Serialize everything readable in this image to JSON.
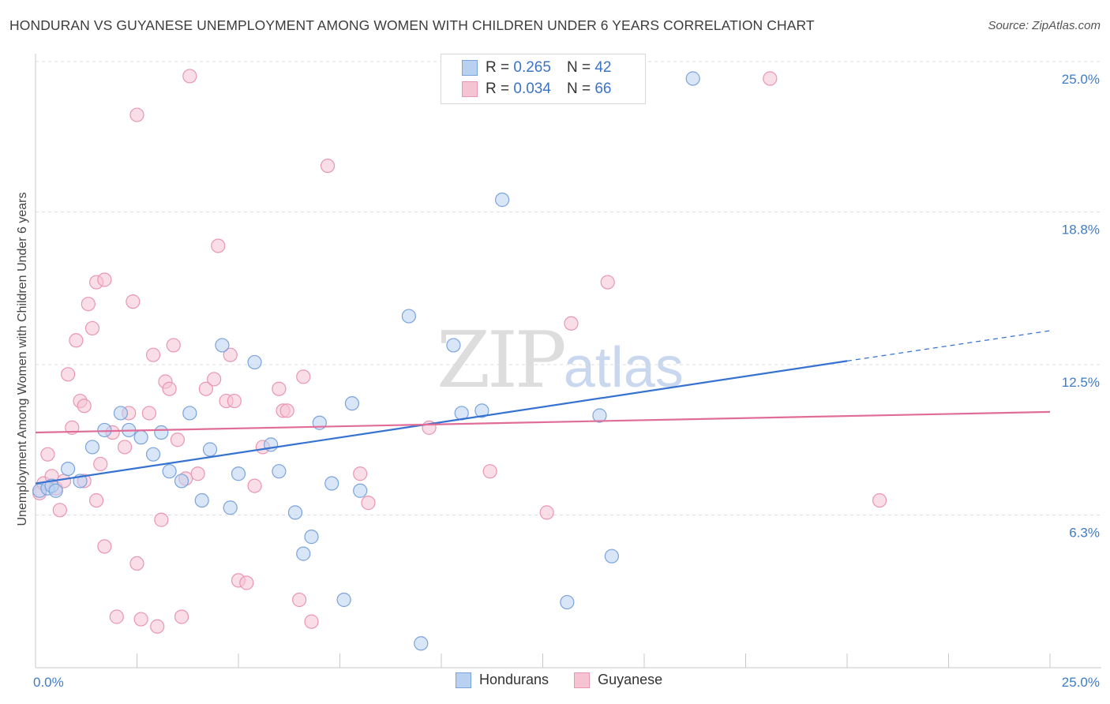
{
  "title": "HONDURAN VS GUYANESE UNEMPLOYMENT AMONG WOMEN WITH CHILDREN UNDER 6 YEARS CORRELATION CHART",
  "source": "Source: ZipAtlas.com",
  "watermark": {
    "zip": "ZIP",
    "atlas": "atlas"
  },
  "legend_top": {
    "rows": [
      {
        "r_label": "R =",
        "r_value": "0.265",
        "n_label": "N =",
        "n_value": "42"
      },
      {
        "r_label": "R =",
        "r_value": "0.034",
        "n_label": "N =",
        "n_value": "66"
      }
    ]
  },
  "legend_bottom": {
    "hondurans": "Hondurans",
    "guyanese": "Guyanese"
  },
  "colors": {
    "hondurans_fill": "#b8d1f1",
    "hondurans_stroke": "#7ba3dc",
    "hondurans_line": "#3572d1",
    "guyanese_fill": "#f6c3d3",
    "guyanese_stroke": "#e996b2",
    "guyanese_line": "#e06d97",
    "tick_text": "#3f7cc9",
    "grid": "#dcdcdc"
  },
  "chart_data": {
    "type": "scatter",
    "title": "HONDURAN VS GUYANESE UNEMPLOYMENT AMONG WOMEN WITH CHILDREN UNDER 6 YEARS CORRELATION CHART",
    "xlabel": "",
    "ylabel": "Unemployment Among Women with Children Under 6 years",
    "xlim": [
      0,
      25
    ],
    "ylim": [
      0,
      25
    ],
    "x_ticks": [
      "0.0%",
      "25.0%"
    ],
    "y_ticks": [
      {
        "value": 6.3,
        "label": "6.3%"
      },
      {
        "value": 12.5,
        "label": "12.5%"
      },
      {
        "value": 18.8,
        "label": "18.8%"
      },
      {
        "value": 25.0,
        "label": "25.0%"
      }
    ],
    "grid": true,
    "legend": "bottom-center",
    "series": [
      {
        "name": "Hondurans",
        "r": 0.265,
        "n": 42,
        "trend": {
          "x": [
            0.0,
            20.0
          ],
          "y": [
            7.6,
            12.65
          ],
          "dashed_to": [
            25.0,
            13.9
          ]
        },
        "points": [
          [
            0.1,
            7.3
          ],
          [
            0.3,
            7.4
          ],
          [
            0.4,
            7.5
          ],
          [
            0.5,
            7.3
          ],
          [
            0.8,
            8.2
          ],
          [
            1.1,
            7.7
          ],
          [
            1.4,
            9.1
          ],
          [
            1.7,
            9.8
          ],
          [
            2.1,
            10.5
          ],
          [
            2.3,
            9.8
          ],
          [
            2.6,
            9.5
          ],
          [
            2.9,
            8.8
          ],
          [
            3.1,
            9.7
          ],
          [
            3.3,
            8.1
          ],
          [
            3.6,
            7.7
          ],
          [
            3.8,
            10.5
          ],
          [
            4.1,
            6.9
          ],
          [
            4.3,
            9.0
          ],
          [
            4.6,
            13.3
          ],
          [
            4.8,
            6.6
          ],
          [
            5.0,
            8.0
          ],
          [
            5.4,
            12.6
          ],
          [
            5.8,
            9.2
          ],
          [
            6.0,
            8.1
          ],
          [
            6.4,
            6.4
          ],
          [
            6.6,
            4.7
          ],
          [
            6.8,
            5.4
          ],
          [
            7.0,
            10.1
          ],
          [
            7.3,
            7.6
          ],
          [
            7.6,
            2.8
          ],
          [
            7.8,
            10.9
          ],
          [
            8.0,
            7.3
          ],
          [
            9.2,
            14.5
          ],
          [
            9.5,
            1.0
          ],
          [
            10.3,
            13.3
          ],
          [
            10.5,
            10.5
          ],
          [
            11.0,
            10.6
          ],
          [
            11.5,
            19.3
          ],
          [
            13.1,
            2.7
          ],
          [
            13.9,
            10.4
          ],
          [
            14.2,
            4.6
          ],
          [
            16.2,
            24.3
          ]
        ]
      },
      {
        "name": "Guyanese",
        "r": 0.034,
        "n": 66,
        "trend": {
          "x": [
            0.0,
            25.0
          ],
          "y": [
            9.7,
            10.55
          ]
        },
        "points": [
          [
            0.1,
            7.2
          ],
          [
            0.2,
            7.6
          ],
          [
            0.3,
            8.8
          ],
          [
            0.4,
            7.9
          ],
          [
            0.5,
            7.4
          ],
          [
            0.6,
            6.5
          ],
          [
            0.7,
            7.7
          ],
          [
            0.8,
            12.1
          ],
          [
            0.9,
            9.9
          ],
          [
            1.0,
            13.5
          ],
          [
            1.1,
            11.0
          ],
          [
            1.2,
            10.8
          ],
          [
            1.2,
            7.7
          ],
          [
            1.3,
            15.0
          ],
          [
            1.4,
            14.0
          ],
          [
            1.5,
            15.9
          ],
          [
            1.5,
            6.9
          ],
          [
            1.6,
            8.4
          ],
          [
            1.7,
            5.0
          ],
          [
            1.7,
            16.0
          ],
          [
            1.9,
            9.7
          ],
          [
            2.0,
            2.1
          ],
          [
            2.2,
            9.1
          ],
          [
            2.3,
            10.5
          ],
          [
            2.4,
            15.1
          ],
          [
            2.5,
            22.8
          ],
          [
            2.5,
            4.3
          ],
          [
            2.6,
            2.0
          ],
          [
            2.8,
            10.5
          ],
          [
            2.9,
            12.9
          ],
          [
            3.0,
            1.7
          ],
          [
            3.1,
            6.1
          ],
          [
            3.2,
            11.8
          ],
          [
            3.3,
            11.5
          ],
          [
            3.4,
            13.3
          ],
          [
            3.5,
            9.4
          ],
          [
            3.6,
            2.1
          ],
          [
            3.7,
            7.8
          ],
          [
            3.8,
            24.4
          ],
          [
            4.0,
            8.0
          ],
          [
            4.2,
            11.5
          ],
          [
            4.4,
            11.9
          ],
          [
            4.5,
            17.4
          ],
          [
            4.7,
            11.0
          ],
          [
            4.8,
            12.9
          ],
          [
            4.9,
            11.0
          ],
          [
            5.0,
            3.6
          ],
          [
            5.2,
            3.5
          ],
          [
            5.4,
            7.5
          ],
          [
            5.6,
            9.1
          ],
          [
            6.0,
            11.5
          ],
          [
            6.1,
            10.6
          ],
          [
            6.2,
            10.6
          ],
          [
            6.5,
            2.8
          ],
          [
            6.6,
            12.0
          ],
          [
            6.8,
            1.9
          ],
          [
            7.2,
            20.7
          ],
          [
            8.0,
            8.0
          ],
          [
            8.2,
            6.8
          ],
          [
            9.7,
            9.9
          ],
          [
            11.2,
            8.1
          ],
          [
            12.6,
            6.4
          ],
          [
            13.2,
            14.2
          ],
          [
            14.1,
            15.9
          ],
          [
            18.1,
            24.3
          ],
          [
            20.8,
            6.9
          ]
        ]
      }
    ]
  }
}
